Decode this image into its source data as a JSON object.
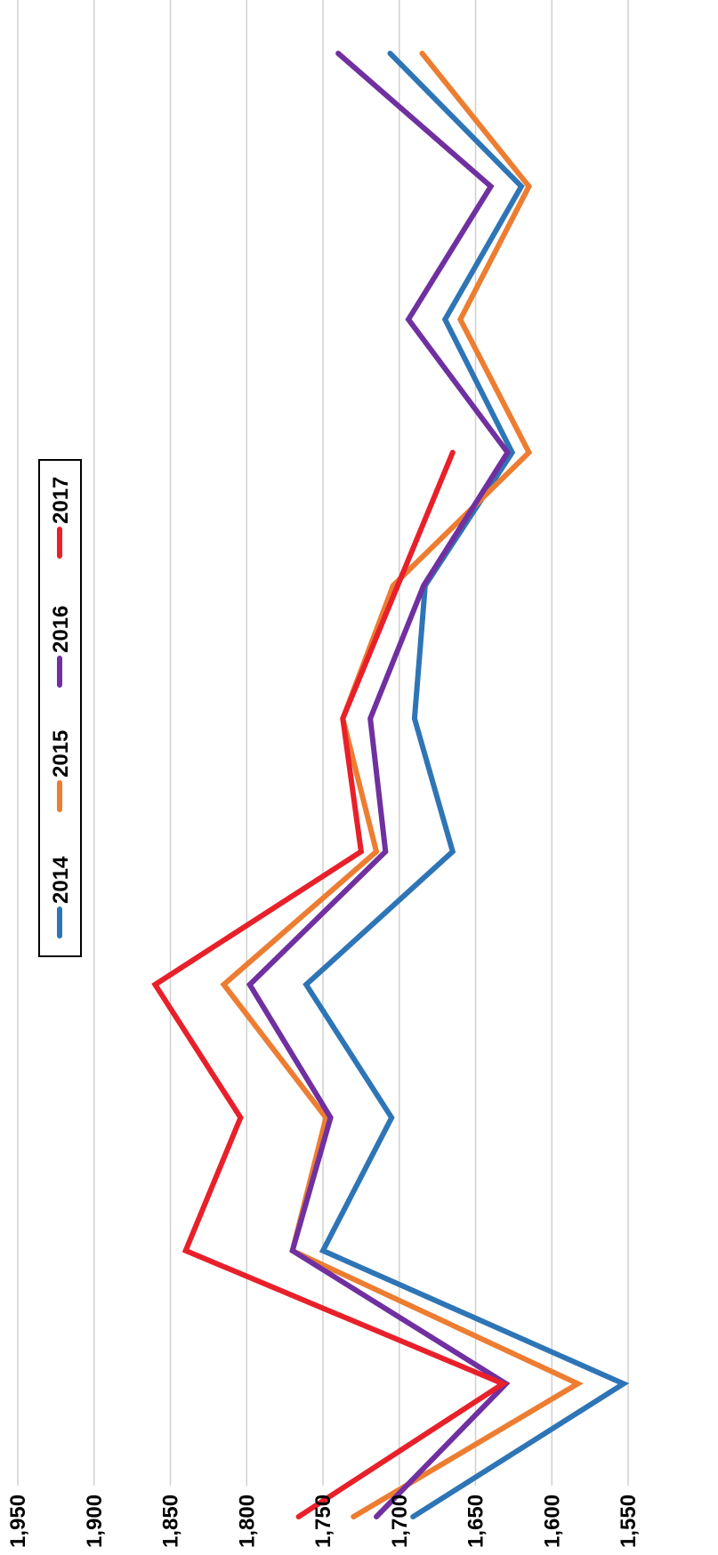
{
  "chart_data": {
    "type": "line",
    "orientation": "rotated 90° clockwise (value axis along bottom edge, decreasing left→right)",
    "y_axis": {
      "ticks": [
        1950,
        1900,
        1850,
        1800,
        1750,
        1700,
        1650,
        1600,
        1550
      ],
      "tick_labels": [
        "1,950",
        "1,900",
        "1,850",
        "1,800",
        "1,750",
        "1,700",
        "1,650",
        "1,600",
        "1,550"
      ],
      "ylim": [
        1550,
        1950
      ],
      "grid": true
    },
    "x_points": [
      1,
      2,
      3,
      4,
      5,
      6,
      7,
      8,
      9,
      10,
      11,
      12
    ],
    "series": [
      {
        "name": "2014",
        "color": "#2e75b6",
        "values": [
          1691,
          1553,
          1750,
          1705,
          1761,
          1665,
          1690,
          1683,
          1626,
          1670,
          1620,
          1706
        ]
      },
      {
        "name": "2015",
        "color": "#ed7d31",
        "values": [
          1730,
          1583,
          1770,
          1748,
          1815,
          1715,
          1737,
          1704,
          1615,
          1660,
          1615,
          1685
        ]
      },
      {
        "name": "2016",
        "color": "#7030a0",
        "values": [
          1715,
          1630,
          1770,
          1745,
          1798,
          1709,
          1719,
          1684,
          1629,
          1694,
          1640,
          1740
        ]
      },
      {
        "name": "2017",
        "color": "#e8202a",
        "values": [
          1766,
          1632,
          1840,
          1804,
          1860,
          1725,
          1737,
          null,
          1665,
          null,
          null,
          null
        ]
      }
    ],
    "legend": {
      "placement": "top-center, rotated",
      "entries": [
        "2014",
        "2015",
        "2016",
        "2017"
      ]
    },
    "title": "",
    "xlabel": "",
    "ylabel": ""
  }
}
